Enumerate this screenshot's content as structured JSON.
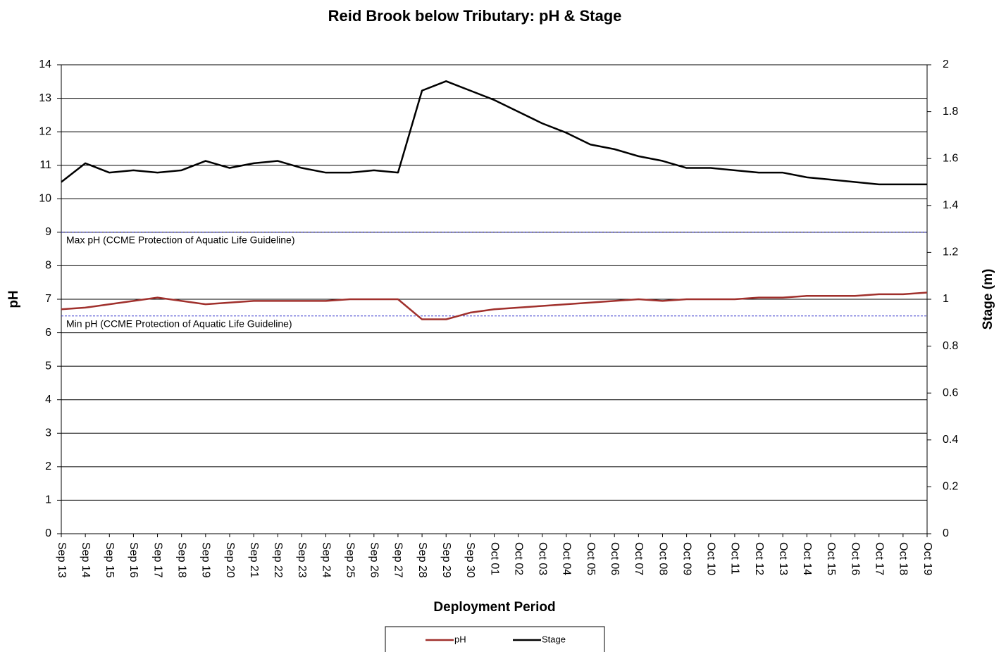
{
  "chart_data": {
    "type": "line",
    "title": "Reid Brook below Tributary: pH & Stage",
    "x_label": "Deployment Period",
    "y_label": "pH",
    "y2_label": "Stage (m)",
    "categories": [
      "Sep 13",
      "Sep 14",
      "Sep 15",
      "Sep 16",
      "Sep 17",
      "Sep 18",
      "Sep 19",
      "Sep 20",
      "Sep 21",
      "Sep 22",
      "Sep 23",
      "Sep 24",
      "Sep 25",
      "Sep 26",
      "Sep 27",
      "Sep 28",
      "Sep 29",
      "Sep 30",
      "Oct 01",
      "Oct 02",
      "Oct 03",
      "Oct 04",
      "Oct 05",
      "Oct 06",
      "Oct 07",
      "Oct 08",
      "Oct 09",
      "Oct 10",
      "Oct 11",
      "Oct 12",
      "Oct 13",
      "Oct 14",
      "Oct 15",
      "Oct 16",
      "Oct 17",
      "Oct 18",
      "Oct 19"
    ],
    "series": [
      {
        "name": "pH",
        "color": "#a0302c",
        "values": [
          6.7,
          6.75,
          6.85,
          6.95,
          7.05,
          6.95,
          6.85,
          6.9,
          6.95,
          6.95,
          6.95,
          6.95,
          7.0,
          7.0,
          7.0,
          6.4,
          6.4,
          6.6,
          6.7,
          6.75,
          6.8,
          6.85,
          6.9,
          6.95,
          7.0,
          6.95,
          7.0,
          7.0,
          7.0,
          7.05,
          7.05,
          7.1,
          7.1,
          7.1,
          7.15,
          7.15,
          7.2
        ]
      },
      {
        "name": "Stage",
        "color": "#000000",
        "axis": "y2",
        "values": [
          1.5,
          1.58,
          1.54,
          1.55,
          1.54,
          1.55,
          1.59,
          1.56,
          1.58,
          1.59,
          1.56,
          1.54,
          1.54,
          1.55,
          1.54,
          1.89,
          1.93,
          1.89,
          1.85,
          1.8,
          1.75,
          1.71,
          1.66,
          1.64,
          1.61,
          1.59,
          1.56,
          1.56,
          1.55,
          1.54,
          1.54,
          1.52,
          1.51,
          1.5,
          1.49,
          1.49,
          1.49
        ]
      }
    ],
    "ylim": [
      0,
      14
    ],
    "yticks": [
      0,
      1,
      2,
      3,
      4,
      5,
      6,
      7,
      8,
      9,
      10,
      11,
      12,
      13,
      14
    ],
    "y2lim": [
      0,
      2
    ],
    "y2ticks": [
      0,
      0.2,
      0.4,
      0.6,
      0.8,
      1,
      1.2,
      1.4,
      1.6,
      1.8,
      2
    ],
    "grid": true,
    "reference_lines": [
      {
        "value": 9,
        "label": "Max pH  (CCME  Protection of Aquatic Life Guideline)",
        "color": "#3333cc"
      },
      {
        "value": 6.5,
        "label": "Min pH  (CCME  Protection of Aquatic Life Guideline)",
        "color": "#3333cc"
      }
    ],
    "legend": "bottom"
  }
}
